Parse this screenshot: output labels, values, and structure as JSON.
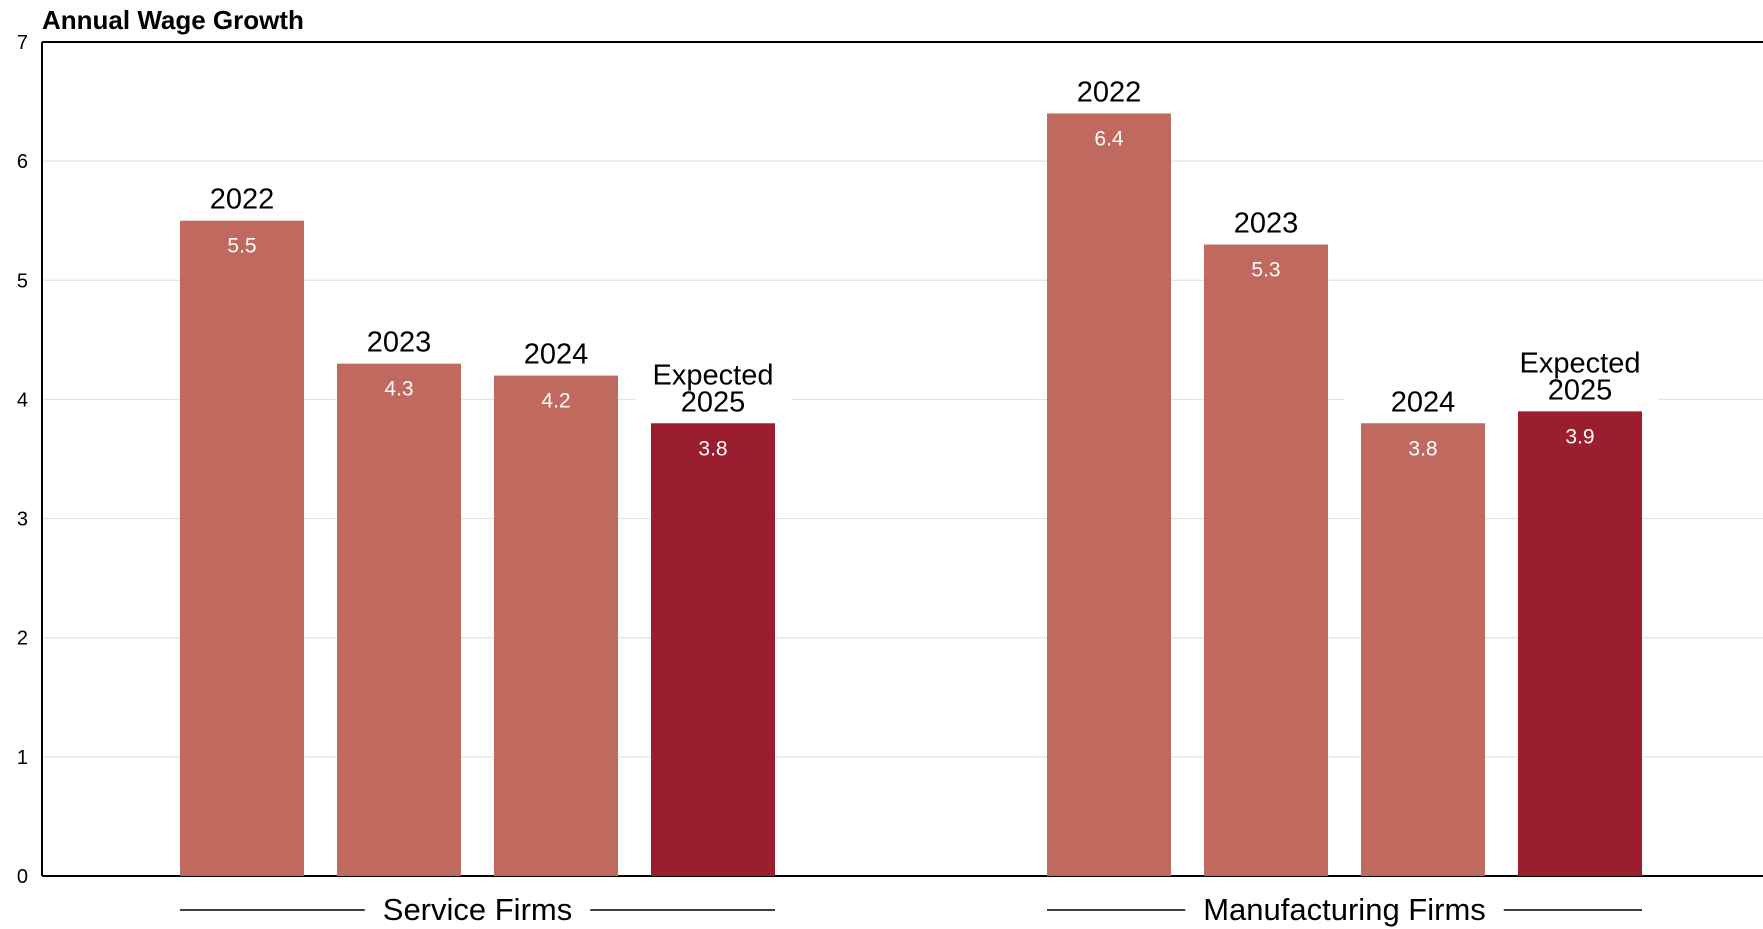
{
  "chart_data": {
    "type": "bar",
    "title": "Annual Wage Growth",
    "ylim": [
      0,
      7
    ],
    "yticks": [
      "0",
      "1",
      "2",
      "3",
      "4",
      "5",
      "6",
      "7"
    ],
    "grid": true,
    "colors": {
      "historical": "#bf695f",
      "expected": "#9b1e2f"
    },
    "groups": [
      {
        "name": "Service Firms",
        "bars": [
          {
            "label": "2022",
            "value": 5.5,
            "value_label": "5.5",
            "expected": false
          },
          {
            "label": "2023",
            "value": 4.3,
            "value_label": "4.3",
            "expected": false
          },
          {
            "label": "2024",
            "value": 4.2,
            "value_label": "4.2",
            "expected": false
          },
          {
            "label": "Expected\n2025",
            "value": 3.8,
            "value_label": "3.8",
            "expected": true
          }
        ]
      },
      {
        "name": "Manufacturing Firms",
        "bars": [
          {
            "label": "2022",
            "value": 6.4,
            "value_label": "6.4",
            "expected": false
          },
          {
            "label": "2023",
            "value": 5.3,
            "value_label": "5.3",
            "expected": false
          },
          {
            "label": "2024",
            "value": 3.8,
            "value_label": "3.8",
            "expected": false
          },
          {
            "label": "Expected\n2025",
            "value": 3.9,
            "value_label": "3.9",
            "expected": true
          }
        ]
      }
    ]
  }
}
